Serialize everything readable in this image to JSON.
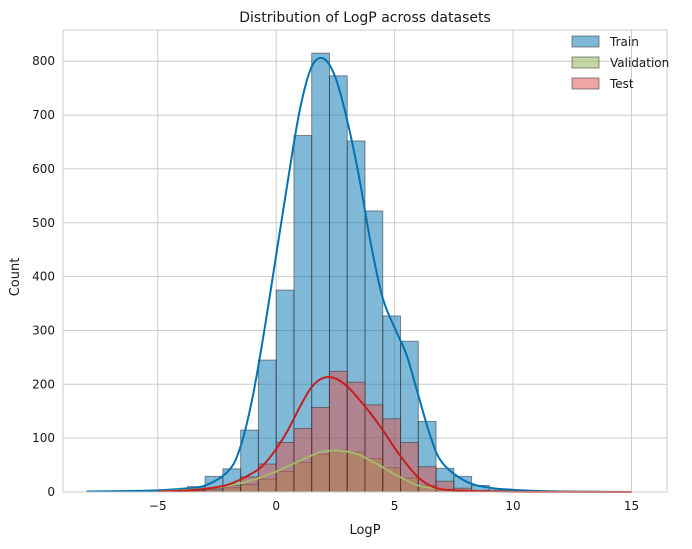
{
  "chart_data": {
    "type": "histogram",
    "title": "Distribution of LogP across datasets",
    "xlabel": "LogP",
    "ylabel": "Count",
    "xlim": [
      -9,
      16.5
    ],
    "ylim": [
      0,
      858
    ],
    "x_ticks": [
      -5,
      0,
      5,
      10,
      15
    ],
    "y_ticks": [
      0,
      100,
      200,
      300,
      400,
      500,
      600,
      700,
      800
    ],
    "grid": true,
    "legend_position": "top-right",
    "bin_width": 0.75,
    "series": [
      {
        "name": "Train",
        "color": "#0173b2",
        "bins_start": [
          -7.5,
          -6.75,
          -6.0,
          -5.25,
          -4.5,
          -3.75,
          -3.0,
          -2.25,
          -1.5,
          -0.75,
          0.0,
          0.75,
          1.5,
          2.25,
          3.0,
          3.75,
          4.5,
          5.25,
          6.0,
          6.75,
          7.5,
          8.25,
          9.0,
          9.75,
          10.5,
          11.25,
          12.0,
          12.75,
          13.5,
          14.25
        ],
        "counts": [
          1,
          1,
          2,
          3,
          5,
          10,
          29,
          43,
          115,
          245,
          375,
          662,
          815,
          773,
          652,
          522,
          327,
          280,
          131,
          44,
          29,
          12,
          4,
          2,
          1,
          1,
          1,
          1,
          1,
          1
        ],
        "kde_x": [
          -8,
          -6,
          -5,
          -4,
          -3,
          -2,
          -1.5,
          -1,
          -0.5,
          0,
          0.5,
          1,
          1.5,
          2,
          2.5,
          3,
          3.5,
          4,
          4.5,
          5,
          5.5,
          6,
          6.5,
          7,
          8,
          9,
          10,
          11,
          12,
          13,
          14,
          15
        ],
        "kde_y": [
          1,
          2,
          3,
          6,
          12,
          40,
          85,
          175,
          300,
          440,
          580,
          710,
          790,
          805,
          770,
          690,
          585,
          460,
          360,
          305,
          255,
          180,
          105,
          55,
          20,
          8,
          4,
          2,
          1,
          0.5,
          0.2,
          0.1
        ]
      },
      {
        "name": "Validation",
        "color": "#8ab04a",
        "bins_start": [
          -4.5,
          -3.75,
          -3.0,
          -2.25,
          -1.5,
          -0.75,
          0.0,
          0.75,
          1.5,
          2.25,
          3.0,
          3.75,
          4.5,
          5.25,
          6.0,
          6.75,
          7.5
        ],
        "counts": [
          1,
          2,
          4,
          8,
          14,
          24,
          38,
          55,
          70,
          78,
          74,
          62,
          45,
          26,
          12,
          5,
          2
        ],
        "kde_x": [
          -5,
          -4,
          -3,
          -2,
          -1,
          0,
          0.5,
          1,
          1.5,
          2,
          2.5,
          3,
          3.5,
          4,
          4.5,
          5,
          5.5,
          6,
          7,
          8,
          9,
          10
        ],
        "kde_y": [
          1,
          3,
          6,
          12,
          22,
          38,
          48,
          58,
          68,
          75,
          77,
          75,
          69,
          58,
          46,
          33,
          22,
          12,
          5,
          2,
          1,
          0.5
        ]
      },
      {
        "name": "Test",
        "color": "#de4e45",
        "bins_start": [
          -4.5,
          -3.75,
          -3.0,
          -2.25,
          -1.5,
          -0.75,
          0.0,
          0.75,
          1.5,
          2.25,
          3.0,
          3.75,
          4.5,
          5.25,
          6.0,
          6.75,
          7.5,
          8.25,
          9.0
        ],
        "counts": [
          1,
          3,
          6,
          12,
          28,
          52,
          92,
          118,
          157,
          224,
          204,
          162,
          136,
          92,
          47,
          20,
          7,
          3,
          1
        ],
        "kde_x": [
          -5,
          -4,
          -3,
          -2,
          -1,
          -0.5,
          0,
          0.5,
          1,
          1.5,
          2,
          2.5,
          3,
          3.5,
          4,
          4.5,
          5,
          5.5,
          6,
          6.5,
          7,
          8,
          9,
          10,
          11,
          12,
          13,
          14,
          15
        ],
        "kde_y": [
          1,
          2,
          6,
          14,
          35,
          52,
          80,
          115,
          158,
          195,
          212,
          211,
          196,
          172,
          145,
          115,
          82,
          52,
          27,
          12,
          5,
          2,
          1,
          0.5,
          0.3,
          0.2,
          0.2,
          0.1,
          0.1
        ]
      }
    ]
  }
}
